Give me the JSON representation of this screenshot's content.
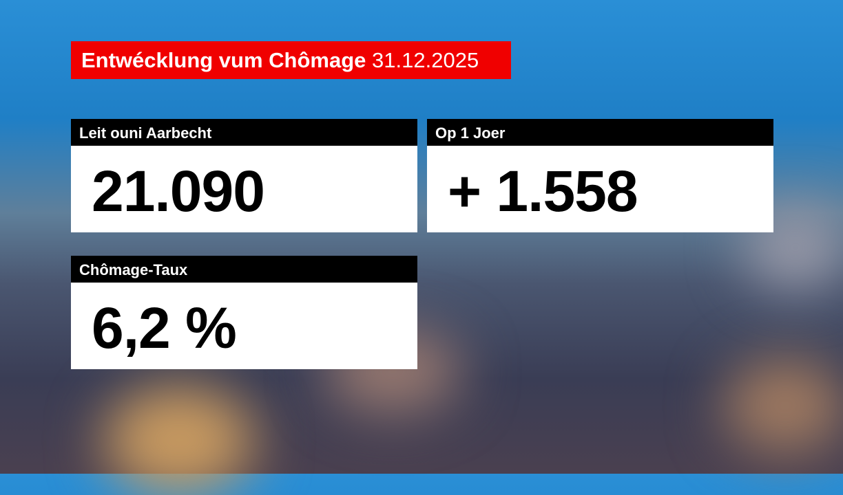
{
  "title": {
    "text": "Entwécklung vum Chômage",
    "date": "31.12.2025",
    "color": "#f00000"
  },
  "cards": [
    {
      "label": "Leit ouni Aarbecht",
      "value": "21.090"
    },
    {
      "label": "Op 1 Joer",
      "value": "+ 1.558"
    },
    {
      "label": "Chômage-Taux",
      "value": "6,2 %"
    }
  ]
}
